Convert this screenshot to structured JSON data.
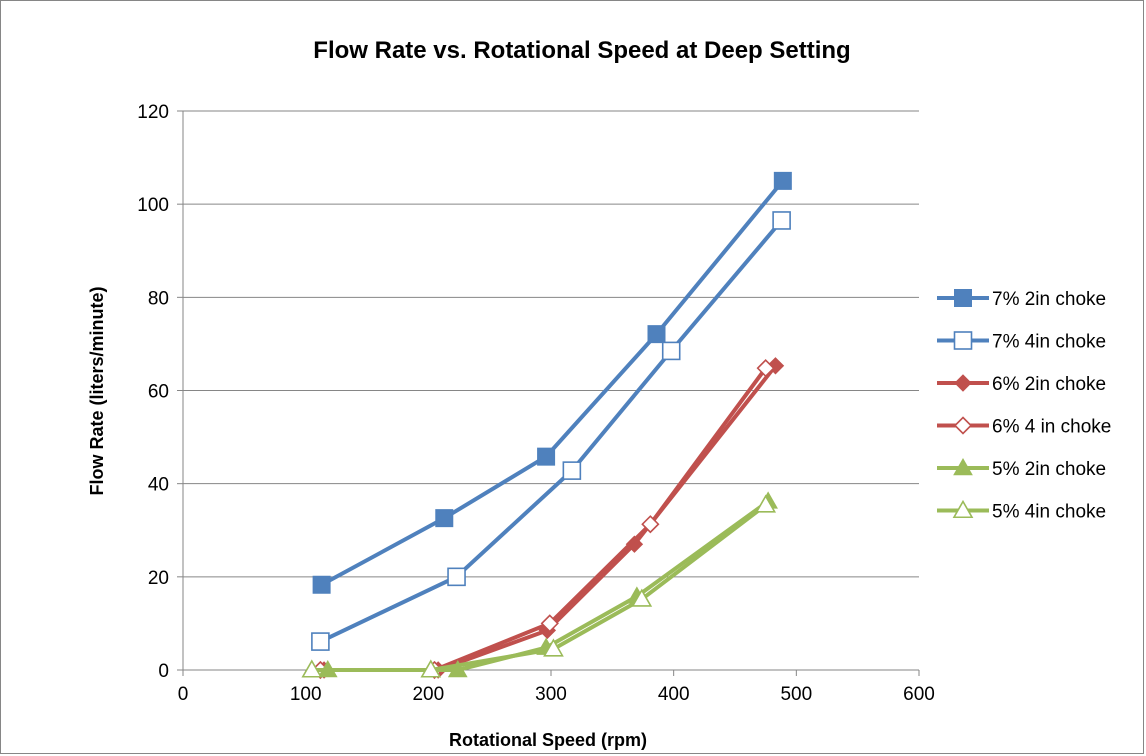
{
  "chart_data": {
    "type": "line",
    "title": "Flow Rate vs. Rotational Speed at Deep Setting",
    "xlabel": "Rotational Speed (rpm)",
    "ylabel": "Flow Rate (liters/minute)",
    "xlim": [
      0,
      600
    ],
    "ylim": [
      0,
      120
    ],
    "xticks": [
      0,
      100,
      200,
      300,
      400,
      500,
      600
    ],
    "yticks": [
      0,
      20,
      40,
      60,
      80,
      100,
      120
    ],
    "grid": "horizontal",
    "legend_position": "right",
    "series": [
      {
        "name": "7% 2in choke",
        "color": "#4f81bd",
        "marker": "square-filled",
        "x": [
          113,
          213,
          296,
          386,
          489
        ],
        "y": [
          18.3,
          32.6,
          45.8,
          72.1,
          105
        ]
      },
      {
        "name": "7% 4in choke",
        "color": "#4f81bd",
        "marker": "square-open",
        "x": [
          112,
          223,
          317,
          398,
          488
        ],
        "y": [
          6.1,
          20,
          42.8,
          68.5,
          96.5
        ]
      },
      {
        "name": "6% 2in choke",
        "color": "#c0504d",
        "marker": "diamond-filled",
        "x": [
          115,
          208,
          297,
          368,
          483
        ],
        "y": [
          0,
          0,
          8.5,
          27,
          65.3
        ]
      },
      {
        "name": "6% 4 in choke",
        "color": "#c0504d",
        "marker": "diamond-open",
        "x": [
          112,
          205,
          299,
          381,
          475
        ],
        "y": [
          0,
          0,
          10,
          31.3,
          64.8
        ]
      },
      {
        "name": "5% 2in choke",
        "color": "#9bbb59",
        "marker": "triangle-filled",
        "x": [
          118,
          224,
          296,
          370,
          477
        ],
        "y": [
          0,
          0,
          4.8,
          15.8,
          36.2
        ]
      },
      {
        "name": "5% 4in choke",
        "color": "#9bbb59",
        "marker": "triangle-open",
        "x": [
          105,
          202,
          302,
          374,
          475
        ],
        "y": [
          0,
          0,
          4.5,
          15.2,
          35.4
        ]
      }
    ]
  }
}
